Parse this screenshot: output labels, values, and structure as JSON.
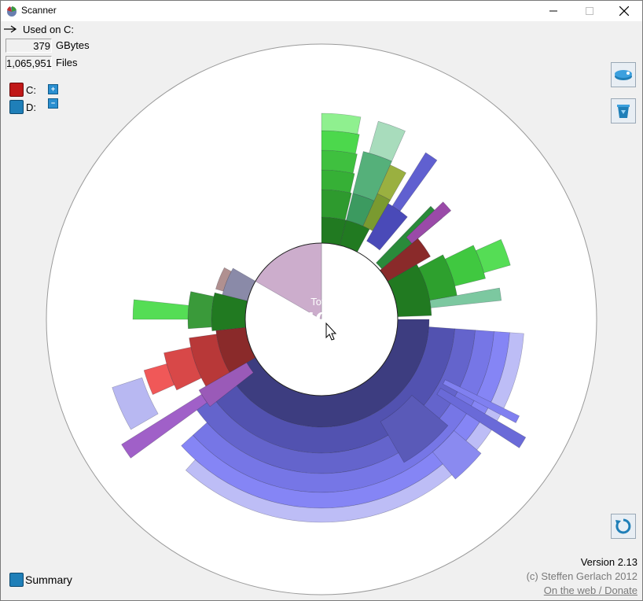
{
  "window": {
    "title": "Scanner"
  },
  "header": {
    "used_label": "Used on C:",
    "size_value": "379",
    "size_unit": "GBytes",
    "files_value": "1,065,951",
    "files_unit": "Files"
  },
  "drives": [
    {
      "label": "C:",
      "color": "#c01818",
      "toggle": "+"
    },
    {
      "label": "D:",
      "color": "#1f7fb8",
      "toggle": "−"
    }
  ],
  "center": {
    "title": "Total",
    "value": "465",
    "unit": "GBytes"
  },
  "footer": {
    "summary_label": "Summary",
    "version": "Version 2.13",
    "copyright": "(c) Steffen Gerlach 2012",
    "weblink": "On the web / Donate"
  },
  "tools": [
    {
      "icon": "hard-drive-icon"
    },
    {
      "icon": "recycle-bin-icon"
    },
    {
      "icon": "refresh-icon"
    }
  ],
  "colors": {
    "free_space": "#ccadcc",
    "used_core": "#6e6e8c",
    "blue_branch": "#3d3d80",
    "green_branch": "#217a21",
    "red_branch": "#8a2a2a"
  }
}
